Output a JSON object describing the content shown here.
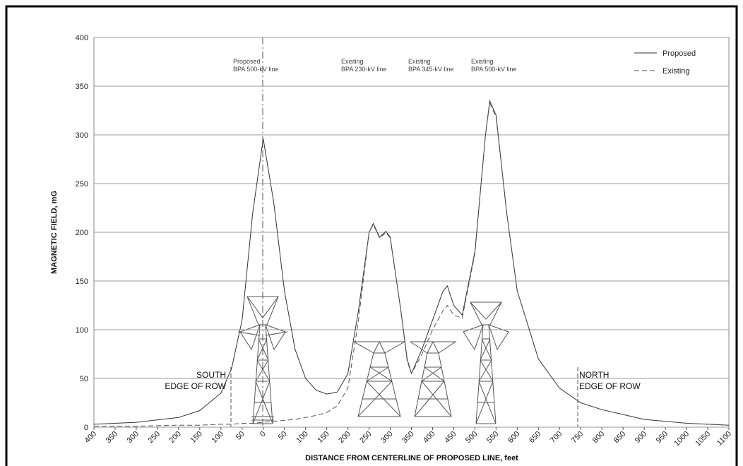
{
  "chart_data": {
    "type": "line",
    "x_label": "DISTANCE FROM CENTERLINE OF PROPOSED LINE, feet",
    "y_label": "MAGNETIC FIELD, mG",
    "x": [
      -400,
      -300,
      -200,
      -150,
      -100,
      -75,
      -50,
      -25,
      0,
      25,
      50,
      75,
      100,
      125,
      150,
      175,
      200,
      225,
      250,
      260,
      275,
      290,
      300,
      325,
      340,
      350,
      375,
      400,
      425,
      435,
      450,
      470,
      500,
      525,
      535,
      550,
      575,
      600,
      650,
      700,
      750,
      800,
      900,
      1000,
      1100
    ],
    "series": [
      {
        "name": "Proposed",
        "color": "#333333",
        "dash": "solid",
        "values": [
          3,
          5,
          10,
          17,
          35,
          60,
          110,
          220,
          296,
          230,
          140,
          80,
          50,
          38,
          34,
          36,
          55,
          120,
          200,
          209,
          195,
          201,
          195,
          120,
          70,
          55,
          80,
          110,
          140,
          145,
          125,
          115,
          180,
          300,
          335,
          320,
          220,
          140,
          70,
          40,
          25,
          18,
          8,
          4,
          2
        ]
      },
      {
        "name": "Existing",
        "color": "#555555",
        "dash": "dashed",
        "values": [
          1,
          1,
          2,
          2,
          3,
          3,
          4,
          4,
          5,
          6,
          7,
          8,
          10,
          12,
          15,
          22,
          40,
          110,
          200,
          208,
          194,
          200,
          194,
          120,
          68,
          55,
          75,
          100,
          120,
          125,
          115,
          112,
          178,
          300,
          333,
          318,
          220,
          140,
          70,
          40,
          25,
          18,
          8,
          4,
          2
        ]
      }
    ],
    "xlim": [
      -400,
      1100
    ],
    "xticks": [
      {
        "value": -400,
        "label": "400"
      },
      {
        "value": -350,
        "label": "350"
      },
      {
        "value": -300,
        "label": "300"
      },
      {
        "value": -250,
        "label": "250"
      },
      {
        "value": -200,
        "label": "200"
      },
      {
        "value": -150,
        "label": "150"
      },
      {
        "value": -100,
        "label": "100"
      },
      {
        "value": -50,
        "label": "50"
      },
      0,
      50,
      100,
      150,
      200,
      250,
      300,
      350,
      400,
      450,
      500,
      550,
      600,
      650,
      700,
      750,
      800,
      850,
      900,
      950,
      1000,
      1050,
      1100
    ],
    "ylim": [
      0,
      400
    ],
    "yticks": [
      0,
      50,
      100,
      150,
      200,
      250,
      300,
      350,
      400
    ],
    "grid": true,
    "legend": "top-right",
    "annotations": [
      [
        "Proposed",
        "BPA 500-kV line"
      ],
      [
        "Existing",
        "BPA 230-kV line"
      ],
      [
        "Existing",
        "BPA 345-kV line"
      ],
      [
        "Existing",
        "BPA 500-kV line"
      ],
      [
        "SOUTH",
        "EDGE OF ROW"
      ],
      [
        "NORTH",
        "EDGE OF ROW"
      ]
    ]
  }
}
